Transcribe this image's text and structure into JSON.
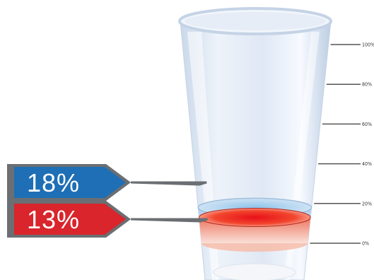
{
  "chart_data": {
    "type": "glass-fill-infographic",
    "y_axis": {
      "min": 0,
      "max": 100,
      "ticks": [
        {
          "value": 0,
          "label": "0%"
        },
        {
          "value": 20,
          "label": "20%"
        },
        {
          "value": 40,
          "label": "40%"
        },
        {
          "value": 60,
          "label": "60%"
        },
        {
          "value": 80,
          "label": "80%"
        },
        {
          "value": 100,
          "label": "100%"
        }
      ]
    },
    "series": [
      {
        "value": 18,
        "label": "18%",
        "color": "#1e6fb5"
      },
      {
        "value": 13,
        "label": "13%",
        "color": "#d9252b"
      }
    ],
    "colors": {
      "glass": "#dfe9f5",
      "blue_layer": "#7fb3e0",
      "red_layer": "#ea3a2a",
      "tag_shadow": "#6b6e72",
      "connector": "#6b6e72"
    }
  }
}
